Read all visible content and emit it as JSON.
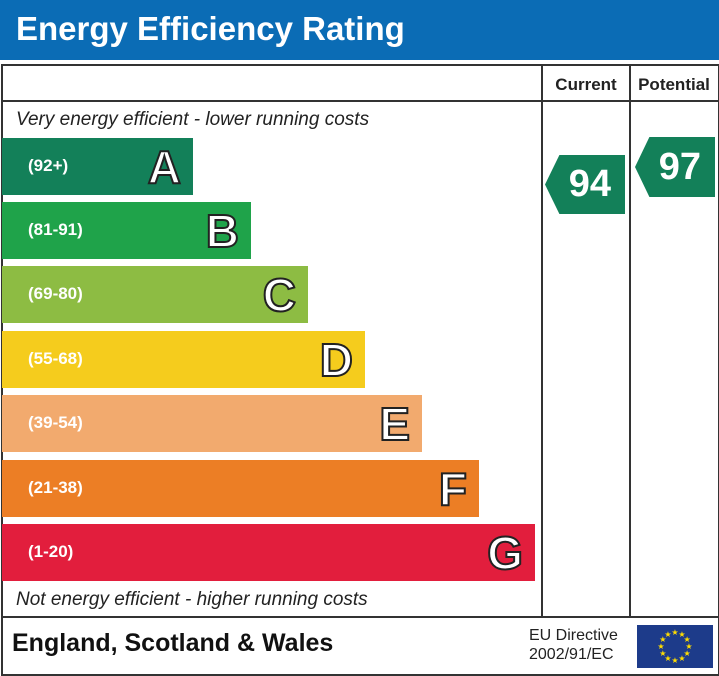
{
  "chart_data": {
    "type": "bar",
    "title": "Energy Efficiency Rating",
    "columns": [
      "Current",
      "Potential"
    ],
    "top_note": "Very energy efficient - lower running costs",
    "bottom_note": "Not energy efficient - higher running costs",
    "bands": [
      {
        "letter": "A",
        "range": "(92+)",
        "color": "#138059"
      },
      {
        "letter": "B",
        "range": "(81-91)",
        "color": "#1fa34a"
      },
      {
        "letter": "C",
        "range": "(69-80)",
        "color": "#8dbc43"
      },
      {
        "letter": "D",
        "range": "(55-68)",
        "color": "#f5cc1d"
      },
      {
        "letter": "E",
        "range": "(39-54)",
        "color": "#f2aa6e"
      },
      {
        "letter": "F",
        "range": "(21-38)",
        "color": "#ec7e25"
      },
      {
        "letter": "G",
        "range": "(1-20)",
        "color": "#e21e3d"
      }
    ],
    "current": {
      "value": "94",
      "band": "A",
      "color": "#138059"
    },
    "potential": {
      "value": "97",
      "band": "A",
      "color": "#138059"
    }
  },
  "footer": {
    "region": "England, Scotland & Wales",
    "directive_line1": "EU Directive",
    "directive_line2": "2002/91/EC"
  }
}
